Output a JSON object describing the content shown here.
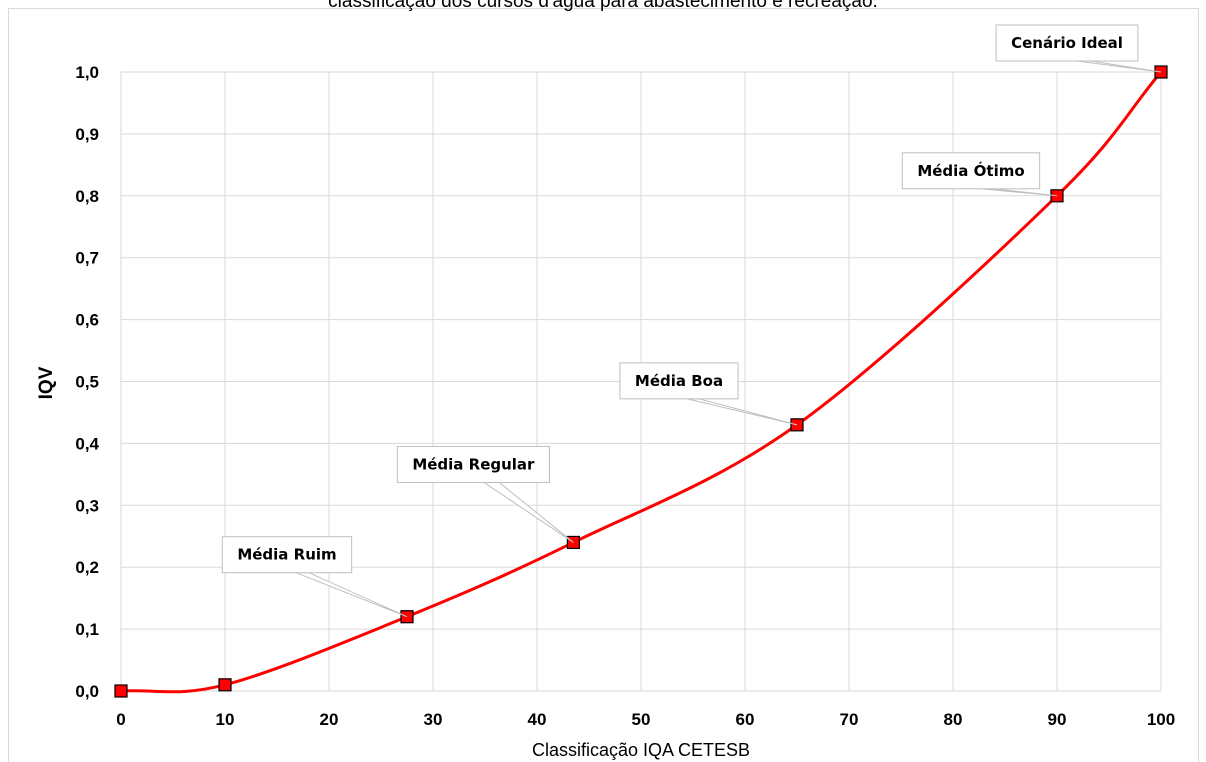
{
  "caption": "classificação dos cursos d'água para abastecimento e recreação.",
  "chart_data": {
    "type": "line",
    "xlabel": "Classificação IQA CETESB",
    "ylabel": "IQV",
    "xlim": [
      0,
      100
    ],
    "ylim": [
      0,
      1
    ],
    "x_ticks": [
      0,
      10,
      20,
      30,
      40,
      50,
      60,
      70,
      80,
      90,
      100
    ],
    "y_ticks": [
      "0,0",
      "0,1",
      "0,2",
      "0,3",
      "0,4",
      "0,5",
      "0,6",
      "0,7",
      "0,8",
      "0,9",
      "1,0"
    ],
    "grid": true,
    "legend": "none",
    "line_color": "#ff0000",
    "marker_color": "#ff0000",
    "points": [
      {
        "x": 0,
        "y": 0.0,
        "label": ""
      },
      {
        "x": 10,
        "y": 0.01,
        "label": ""
      },
      {
        "x": 27.5,
        "y": 0.12,
        "label": "Média Ruim"
      },
      {
        "x": 43.5,
        "y": 0.24,
        "label": "Média Regular"
      },
      {
        "x": 65,
        "y": 0.43,
        "label": "Média Boa"
      },
      {
        "x": 90,
        "y": 0.8,
        "label": "Média Ótimo"
      },
      {
        "x": 100,
        "y": 1.0,
        "label": "Cenário Ideal"
      }
    ]
  }
}
